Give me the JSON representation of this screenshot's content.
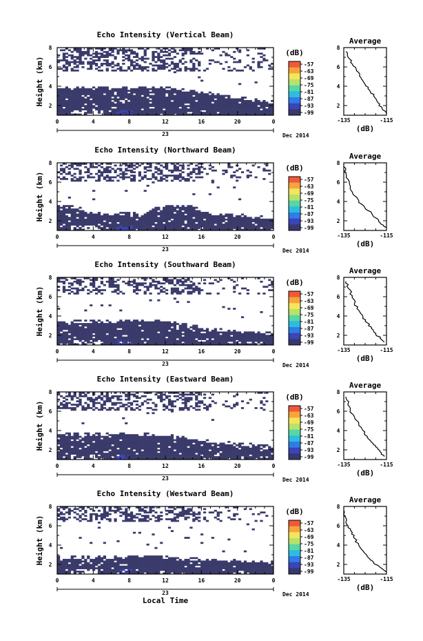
{
  "figure": {
    "x_axis_label": "Local Time",
    "date_label": "Dec 2014",
    "day_label": "23",
    "colorbar_unit": "(dB)",
    "colorbar_ticks": [
      "-57",
      "-63",
      "-69",
      "-75",
      "-81",
      "-87",
      "-93",
      "-99"
    ],
    "colorbar_colors": [
      "#f05a3a",
      "#f7a43d",
      "#f3e65c",
      "#b8e16b",
      "#56d7a5",
      "#2fbbe0",
      "#2f7ce6",
      "#3b44b8",
      "#37386e"
    ],
    "field_color": "#3a3a6b"
  },
  "chart_data": [
    {
      "type": "heatmap",
      "title": "Echo Intensity (Vertical Beam)",
      "ylabel": "Height (km)",
      "xlim": [
        0,
        24
      ],
      "ylim": [
        1,
        8
      ],
      "xticks": [
        "0",
        "4",
        "8",
        "12",
        "16",
        "20",
        "0"
      ],
      "yticks": [
        "2",
        "4",
        "6",
        "8"
      ],
      "lower_layer_top_km": [
        3.8,
        3.8,
        3.8,
        3.8,
        3.8,
        3.7,
        3.5,
        3.2,
        2.8,
        2.5,
        2.3
      ],
      "upper_layer_km": [
        5.5,
        8
      ],
      "average_profile": {
        "title": "Average",
        "xlabel": "(dB)",
        "xticks": [
          "-135",
          "-115"
        ],
        "yticks": [
          "2",
          "4",
          "6",
          "8"
        ],
        "x": [
          -134,
          -133,
          -131,
          -129,
          -127,
          -125,
          -123,
          -121,
          -119,
          -117,
          -115
        ],
        "y": [
          7.6,
          7.0,
          6.3,
          5.6,
          4.9,
          4.2,
          3.6,
          3.0,
          2.3,
          1.7,
          1.2
        ]
      }
    },
    {
      "type": "heatmap",
      "title": "Echo Intensity (Northward Beam)",
      "ylabel": "Height (km)",
      "xlim": [
        0,
        24
      ],
      "ylim": [
        1,
        8
      ],
      "xticks": [
        "0",
        "4",
        "8",
        "12",
        "16",
        "20",
        "0"
      ],
      "yticks": [
        "2",
        "4",
        "6",
        "8"
      ],
      "lower_layer_top_km": [
        3.5,
        3.3,
        2.6,
        2.6,
        2.6,
        3.6,
        3.6,
        2.6,
        2.5,
        2.4,
        2.2
      ],
      "upper_layer_km": [
        6.0,
        8
      ],
      "average_profile": {
        "title": "Average",
        "xlabel": "(dB)",
        "xticks": [
          "-135",
          "-115"
        ],
        "yticks": [
          "2",
          "4",
          "6",
          "8"
        ],
        "x": [
          -135,
          -134,
          -133,
          -132,
          -130,
          -128,
          -125,
          -122,
          -120,
          -118,
          -115
        ],
        "y": [
          7.6,
          7.0,
          6.3,
          5.3,
          4.6,
          3.9,
          3.3,
          2.8,
          2.3,
          1.8,
          1.3
        ]
      }
    },
    {
      "type": "heatmap",
      "title": "Echo Intensity (Southward Beam)",
      "ylabel": "Height (km)",
      "xlim": [
        0,
        24
      ],
      "ylim": [
        1,
        8
      ],
      "xticks": [
        "0",
        "4",
        "8",
        "12",
        "16",
        "20",
        "0"
      ],
      "yticks": [
        "2",
        "4",
        "6",
        "8"
      ],
      "lower_layer_top_km": [
        3.4,
        3.3,
        3.3,
        3.4,
        3.5,
        3.4,
        3.0,
        2.6,
        2.3,
        2.2,
        2.1
      ],
      "upper_layer_km": [
        6.2,
        8
      ],
      "average_profile": {
        "title": "Average",
        "xlabel": "(dB)",
        "xticks": [
          "-135",
          "-115"
        ],
        "yticks": [
          "2",
          "4",
          "6",
          "8"
        ],
        "x": [
          -134,
          -133,
          -131,
          -130,
          -128,
          -126,
          -124,
          -122,
          -120,
          -118,
          -116
        ],
        "y": [
          7.6,
          6.9,
          6.1,
          5.3,
          4.6,
          3.9,
          3.3,
          2.7,
          2.2,
          1.7,
          1.3
        ]
      }
    },
    {
      "type": "heatmap",
      "title": "Echo Intensity (Eastward Beam)",
      "ylabel": "Height (km)",
      "xlim": [
        0,
        24
      ],
      "ylim": [
        1,
        8
      ],
      "xticks": [
        "0",
        "4",
        "8",
        "12",
        "16",
        "20",
        "0"
      ],
      "yticks": [
        "2",
        "4",
        "6",
        "8"
      ],
      "lower_layer_top_km": [
        3.6,
        3.5,
        3.5,
        3.6,
        3.5,
        3.4,
        3.2,
        2.8,
        2.6,
        2.4,
        2.2
      ],
      "upper_layer_km": [
        6.0,
        8
      ],
      "average_profile": {
        "title": "Average",
        "xlabel": "(dB)",
        "xticks": [
          "-135",
          "-115"
        ],
        "yticks": [
          "2",
          "4",
          "6",
          "8"
        ],
        "x": [
          -134,
          -133,
          -132,
          -130,
          -128,
          -126,
          -124,
          -122,
          -120,
          -118,
          -116
        ],
        "y": [
          7.5,
          6.8,
          6.1,
          5.4,
          4.7,
          4.0,
          3.4,
          2.8,
          2.3,
          1.8,
          1.3
        ]
      }
    },
    {
      "type": "heatmap",
      "title": "Echo Intensity (Westward Beam)",
      "ylabel": "Height (km)",
      "xlim": [
        0,
        24
      ],
      "ylim": [
        1,
        8
      ],
      "xticks": [
        "0",
        "4",
        "8",
        "12",
        "16",
        "20",
        "0"
      ],
      "yticks": [
        "2",
        "4",
        "6",
        "8"
      ],
      "lower_layer_top_km": [
        2.6,
        2.6,
        2.6,
        2.7,
        2.7,
        2.6,
        2.5,
        2.4,
        2.3,
        2.2,
        2.1
      ],
      "upper_layer_km": [
        6.5,
        8
      ],
      "average_profile": {
        "title": "Average",
        "xlabel": "(dB)",
        "xticks": [
          "-135",
          "-115"
        ],
        "yticks": [
          "2",
          "4",
          "6",
          "8"
        ],
        "x": [
          -135,
          -134,
          -133,
          -131,
          -130,
          -128,
          -126,
          -124,
          -121,
          -118,
          -115
        ],
        "y": [
          7.6,
          6.8,
          6.0,
          5.3,
          4.7,
          4.0,
          3.4,
          2.8,
          2.2,
          1.7,
          1.2
        ]
      }
    }
  ]
}
